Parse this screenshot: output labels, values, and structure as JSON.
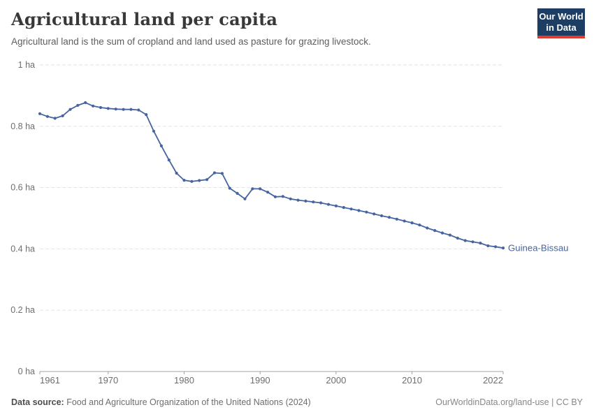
{
  "header": {
    "title": "Agricultural land per capita",
    "subtitle": "Agricultural land is the sum of cropland and land used as pasture for grazing livestock.",
    "logo": {
      "line1": "Our World",
      "line2": "in Data",
      "bg_color": "#1d3d63",
      "bar_color": "#dc3e32"
    }
  },
  "chart_data": {
    "type": "line",
    "title": "Agricultural land per capita",
    "xlabel": "",
    "ylabel": "",
    "xlim": [
      1961,
      2022
    ],
    "ylim": [
      0,
      1
    ],
    "grid": "horizontal-dashed",
    "legend_position": "end-of-line-label",
    "unit": "ha",
    "colors": {
      "line": "#4664a0",
      "gridline": "#e2e2e2",
      "axis": "#a3a3a3",
      "tick_label": "#6e6e6e"
    },
    "y_ticks": [
      {
        "value": 1,
        "label": "1 ha"
      },
      {
        "value": 0.8,
        "label": "0.8 ha"
      },
      {
        "value": 0.6,
        "label": "0.6 ha"
      },
      {
        "value": 0.4,
        "label": "0.4 ha"
      },
      {
        "value": 0.2,
        "label": "0.2 ha"
      },
      {
        "value": 0,
        "label": "0 ha"
      }
    ],
    "x_ticks": [
      {
        "year": 1961,
        "label": "1961"
      },
      {
        "year": 1970,
        "label": "1970"
      },
      {
        "year": 1980,
        "label": "1980"
      },
      {
        "year": 1990,
        "label": "1990"
      },
      {
        "year": 2000,
        "label": "2000"
      },
      {
        "year": 2010,
        "label": "2010"
      },
      {
        "year": 2022,
        "label": "2022"
      }
    ],
    "series": [
      {
        "name": "Guinea-Bissau",
        "color": "#4664a0",
        "x": [
          1961,
          1962,
          1963,
          1964,
          1965,
          1966,
          1967,
          1968,
          1969,
          1970,
          1971,
          1972,
          1973,
          1974,
          1975,
          1976,
          1977,
          1978,
          1979,
          1980,
          1981,
          1982,
          1983,
          1984,
          1985,
          1986,
          1987,
          1988,
          1989,
          1990,
          1991,
          1992,
          1993,
          1994,
          1995,
          1996,
          1997,
          1998,
          1999,
          2000,
          2001,
          2002,
          2003,
          2004,
          2005,
          2006,
          2007,
          2008,
          2009,
          2010,
          2011,
          2012,
          2013,
          2014,
          2015,
          2016,
          2017,
          2018,
          2019,
          2020,
          2021,
          2022
        ],
        "values": [
          0.841,
          0.832,
          0.826,
          0.834,
          0.855,
          0.868,
          0.877,
          0.866,
          0.861,
          0.858,
          0.856,
          0.855,
          0.855,
          0.853,
          0.838,
          0.784,
          0.736,
          0.69,
          0.647,
          0.624,
          0.62,
          0.623,
          0.626,
          0.648,
          0.646,
          0.598,
          0.581,
          0.563,
          0.596,
          0.596,
          0.585,
          0.57,
          0.571,
          0.563,
          0.559,
          0.556,
          0.553,
          0.55,
          0.545,
          0.54,
          0.535,
          0.53,
          0.525,
          0.52,
          0.514,
          0.508,
          0.503,
          0.497,
          0.491,
          0.485,
          0.478,
          0.468,
          0.46,
          0.452,
          0.445,
          0.435,
          0.427,
          0.423,
          0.419,
          0.41,
          0.407,
          0.403
        ]
      }
    ]
  },
  "footer": {
    "source_label": "Data source:",
    "source_text": " Food and Agriculture Organization of the United Nations (2024)",
    "link_text": "OurWorldinData.org/land-use | CC BY"
  }
}
